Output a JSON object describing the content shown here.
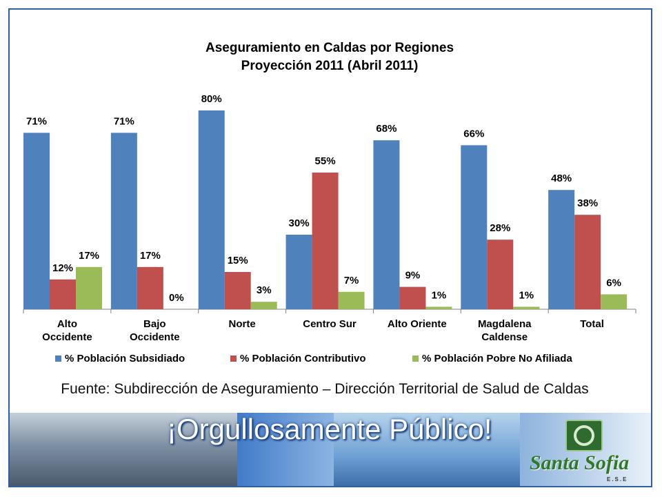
{
  "chart_data": {
    "type": "bar",
    "title": "Aseguramiento en Caldas por Regiones",
    "subtitle": "Proyección 2011 (Abril 2011)",
    "categories": [
      [
        "Alto",
        "Occidente"
      ],
      [
        "Bajo",
        "Occidente"
      ],
      [
        "Norte"
      ],
      [
        "Centro Sur"
      ],
      [
        "Alto Oriente"
      ],
      [
        "Magdalena",
        "Caldense"
      ],
      [
        "Total"
      ]
    ],
    "series": [
      {
        "name": "% Población Subsidiado",
        "color": "#4f81bd",
        "values": [
          71,
          71,
          80,
          30,
          68,
          66,
          48
        ]
      },
      {
        "name": "% Población Contributivo",
        "color": "#c0504d",
        "values": [
          12,
          17,
          15,
          55,
          9,
          28,
          38
        ]
      },
      {
        "name": "% Población Pobre No Afiliada",
        "color": "#9bbb59",
        "values": [
          17,
          0,
          3,
          7,
          1,
          1,
          6
        ]
      }
    ],
    "ylim": [
      0,
      80
    ],
    "value_suffix": "%",
    "grid": false,
    "legend_position": "bottom"
  },
  "source_text": "Fuente: Subdirección de Aseguramiento – Dirección Territorial de Salud de Caldas",
  "banner": {
    "slogan": "¡Orgullosamente Público!",
    "logo_text": "Santa Sofia",
    "logo_sub": "E.S.E"
  }
}
